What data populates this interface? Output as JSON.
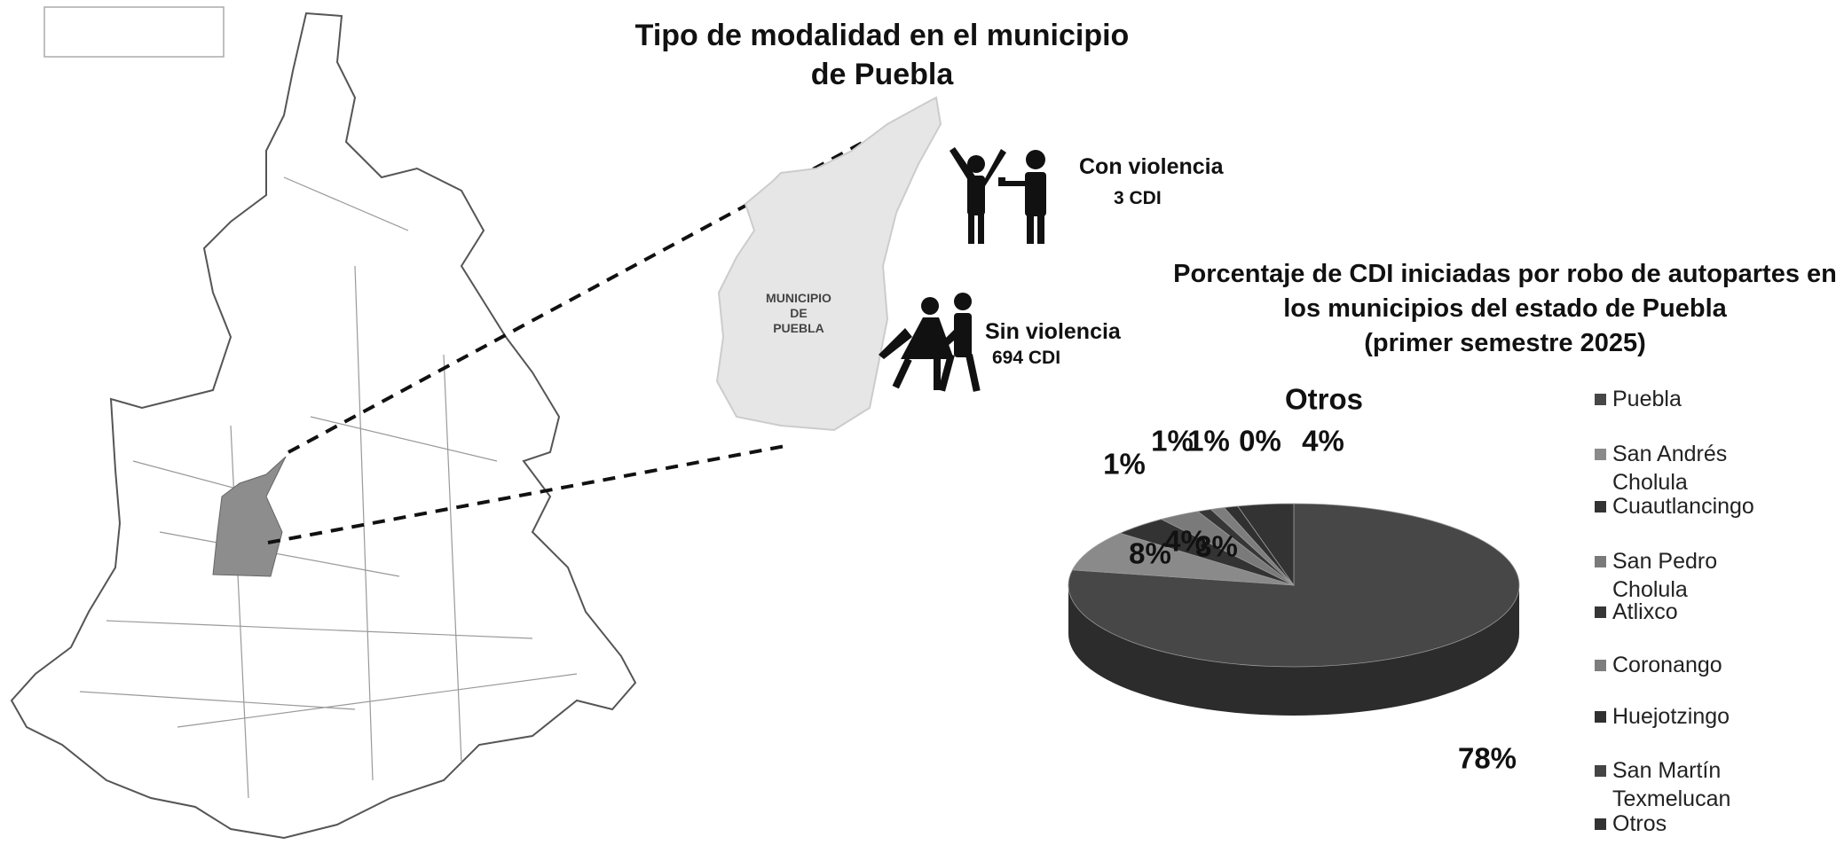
{
  "title_lines": [
    "Tipo de modalidad en el municipio",
    "de Puebla"
  ],
  "map_label_lines": [
    "MUNICIPIO",
    "DE",
    "PUEBLA"
  ],
  "modalities": [
    {
      "name": "Con violencia",
      "count_label": "3 CDI"
    },
    {
      "name": "Sin violencia",
      "count_label": "694 CDI"
    }
  ],
  "chart_data": {
    "type": "pie",
    "title_lines": [
      "Porcentaje de CDI iniciadas por robo de autopartes en",
      "los municipios del estado de Puebla",
      "(primer semestre 2025)"
    ],
    "categories": [
      "Puebla",
      "San Andrés Cholula",
      "Cuautlancingo",
      "San Pedro Cholula",
      "Atlixco",
      "Coronango",
      "Huejotzingo",
      "San Martín Texmelucan",
      "Otros"
    ],
    "values": [
      78,
      8,
      4,
      3,
      1,
      1,
      1,
      0,
      4
    ],
    "value_labels": [
      "78%",
      "8%",
      "4%",
      "3%",
      "1%",
      "1%",
      "1%",
      "0%",
      "4%"
    ],
    "colors": [
      "#474747",
      "#8a8a8a",
      "#333333",
      "#7a7a7a",
      "#363636",
      "#7d7d7d",
      "#303030",
      "#444444",
      "#333333"
    ],
    "legend": "right"
  }
}
